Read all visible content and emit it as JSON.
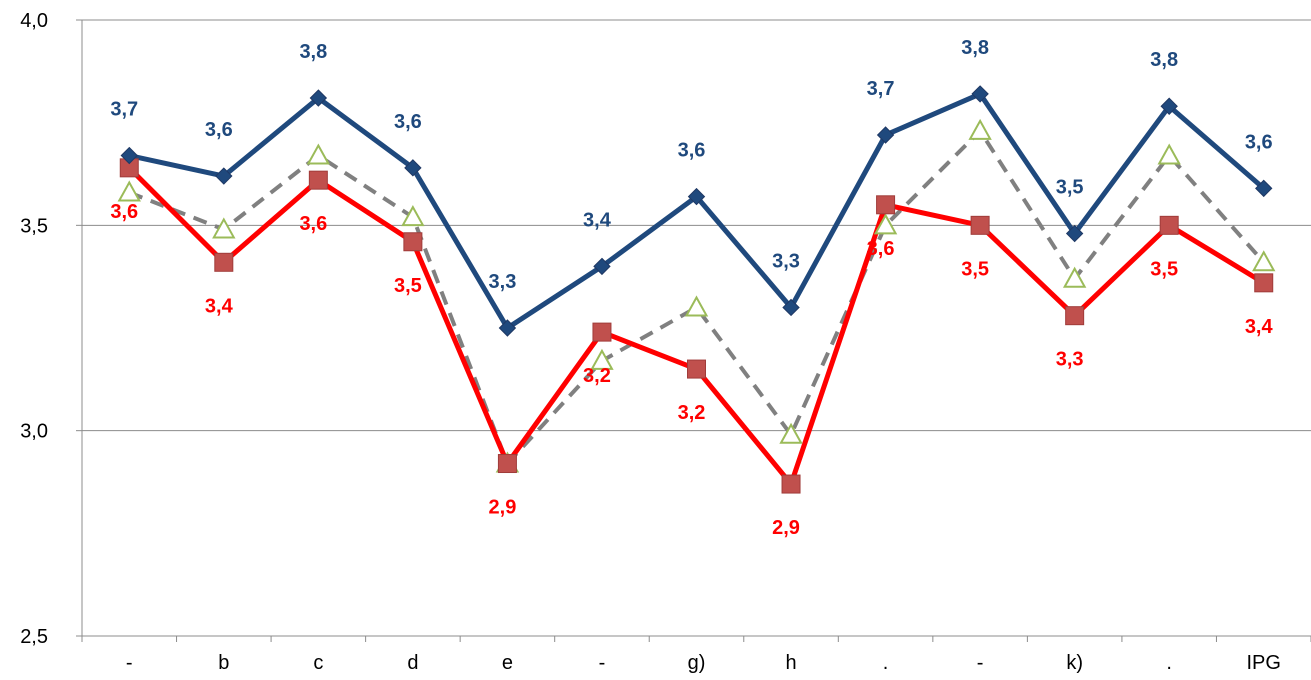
{
  "chart_data": {
    "type": "line",
    "title": "",
    "xlabel": "",
    "ylabel": "",
    "categories": [
      "-",
      "b",
      "c",
      "d",
      "e",
      "-",
      "g)",
      "h",
      ".",
      "-",
      "k)",
      ".",
      "IPG"
    ],
    "ylim": [
      2.5,
      4.0
    ],
    "yticks": [
      2.5,
      3.0,
      3.5,
      4.0
    ],
    "ytick_labels": [
      "2,5",
      "3,0",
      "3,5",
      "4,0"
    ],
    "grid": "horizontal",
    "legend": "none",
    "series": [
      {
        "color": "#1F497D",
        "marker": "diamond",
        "line_style": "solid",
        "values": [
          3.67,
          3.62,
          3.81,
          3.64,
          3.25,
          3.4,
          3.57,
          3.3,
          3.72,
          3.82,
          3.48,
          3.79,
          3.59
        ],
        "labels": [
          "3,7",
          "3,6",
          "3,8",
          "3,6",
          "3,3",
          "3,4",
          "3,6",
          "3,3",
          "3,7",
          "3,8",
          "3,5",
          "3,8",
          "3,6"
        ]
      },
      {
        "color": "#FF0000",
        "marker_color": "#C0504D",
        "marker": "square",
        "line_style": "solid",
        "values": [
          3.64,
          3.41,
          3.61,
          3.46,
          2.92,
          3.24,
          3.15,
          2.87,
          3.55,
          3.5,
          3.28,
          3.5,
          3.36
        ],
        "labels": [
          "3,6",
          "3,4",
          "3,6",
          "3,5",
          "2,9",
          "3,2",
          "3,2",
          "2,9",
          "3,6",
          "3,5",
          "3,3",
          "3,5",
          "3,4"
        ]
      },
      {
        "color": "#808080",
        "marker_color": "#9BBB59",
        "marker": "triangle-open",
        "line_style": "dashed",
        "values": [
          3.58,
          3.49,
          3.67,
          3.52,
          2.92,
          3.17,
          3.3,
          2.99,
          3.5,
          3.73,
          3.37,
          3.67,
          3.41
        ]
      }
    ]
  }
}
